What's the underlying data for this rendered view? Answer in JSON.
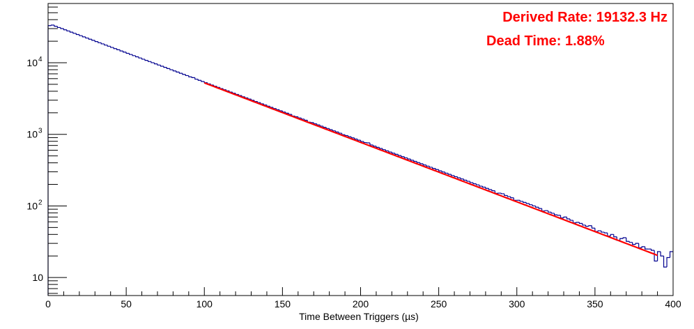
{
  "chart_data": {
    "type": "histogram",
    "title": "",
    "xlabel": "Time Between Triggers (µs)",
    "ylabel": "",
    "xlim": [
      0,
      400
    ],
    "ylim": [
      5.6,
      67300
    ],
    "yscale": "log",
    "grid": false,
    "x_ticks": [
      "0",
      "50",
      "100",
      "150",
      "200",
      "250",
      "300",
      "350",
      "400"
    ],
    "y_ticks": [
      {
        "base": "10",
        "exp": ""
      },
      {
        "base": "10",
        "exp": "2"
      },
      {
        "base": "10",
        "exp": "3"
      },
      {
        "base": "10",
        "exp": "4"
      }
    ],
    "y_tick_values": [
      10,
      100,
      1000,
      10000
    ],
    "bin_width": 2,
    "histogram_color": "#00008f",
    "fit_color": "#ff0000",
    "values": [
      33000,
      33600,
      32300,
      31100,
      30000,
      28860,
      27800,
      26780,
      25780,
      24830,
      23890,
      23020,
      22160,
      21340,
      20560,
      19780,
      19050,
      18350,
      17660,
      17020,
      16370,
      15770,
      15190,
      14620,
      14090,
      13550,
      13050,
      12570,
      12100,
      11660,
      11210,
      10800,
      10400,
      10020,
      9650,
      9290,
      8950,
      8620,
      8300,
      7990,
      7690,
      7410,
      7130,
      6870,
      6620,
      6360,
      6200,
      5900,
      5680,
      5480,
      5270,
      5075,
      4890,
      4705,
      4535,
      4360,
      4200,
      4045,
      3895,
      3750,
      3615,
      3480,
      3350,
      3230,
      3110,
      2990,
      2880,
      2775,
      2670,
      2575,
      2475,
      2385,
      2295,
      2210,
      2130,
      2050,
      1975,
      1900,
      1800,
      1762,
      1696,
      1634,
      1573,
      1480,
      1459,
      1404,
      1353,
      1303,
      1254,
      1208,
      1163,
      1120,
      1079,
      1038,
      990,
      962,
      927,
      893,
      860,
      828,
      796,
      767,
      760,
      711,
      685,
      659,
      635,
      611,
      588,
      567,
      546,
      526,
      506,
      488,
      470,
      452,
      435,
      419,
      403,
      389,
      374,
      360,
      347,
      334,
      322,
      309,
      298,
      287,
      276,
      266,
      256,
      247,
      238,
      229,
      221,
      212,
      204,
      197,
      189,
      183,
      176,
      169,
      163,
      150,
      151,
      148,
      140,
      135,
      130,
      120,
      120,
      116,
      112,
      108,
      104,
      100,
      96,
      92,
      85,
      86,
      82,
      79,
      75,
      74,
      68,
      70,
      66,
      63,
      58,
      59,
      57,
      54,
      52,
      53,
      49,
      44,
      45,
      43,
      42,
      38,
      40,
      37,
      33,
      35,
      36,
      32,
      31,
      29,
      30,
      26,
      27,
      25,
      25,
      24,
      17,
      23,
      20,
      14,
      19,
      23
    ],
    "fit": {
      "type": "exponential",
      "range": [
        100,
        390
      ],
      "amplitude": 35500,
      "rate_per_us": 0.0191323
    }
  },
  "annotations": {
    "derived_rate": "Derived Rate: 19132.3 Hz",
    "dead_time": "Dead Time: 1.88%"
  }
}
